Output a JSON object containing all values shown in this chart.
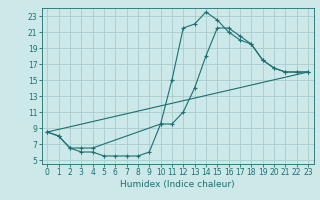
{
  "title": "",
  "xlabel": "Humidex (Indice chaleur)",
  "bg_color": "#cce8e8",
  "grid_color": "#aacccc",
  "line_color": "#1a7070",
  "xlim": [
    -0.5,
    23.5
  ],
  "ylim": [
    4.5,
    24.0
  ],
  "yticks": [
    5,
    7,
    9,
    11,
    13,
    15,
    17,
    19,
    21,
    23
  ],
  "xticks": [
    0,
    1,
    2,
    3,
    4,
    5,
    6,
    7,
    8,
    9,
    10,
    11,
    12,
    13,
    14,
    15,
    16,
    17,
    18,
    19,
    20,
    21,
    22,
    23
  ],
  "line1_x": [
    0,
    1,
    2,
    3,
    4,
    10,
    11,
    12,
    13,
    14,
    15,
    16,
    17,
    18,
    19,
    20,
    21,
    22,
    23
  ],
  "line1_y": [
    8.5,
    8.0,
    6.5,
    6.5,
    6.5,
    9.5,
    15.0,
    21.5,
    22.0,
    23.5,
    22.5,
    21.0,
    20.0,
    19.5,
    17.5,
    16.5,
    16.0,
    16.0,
    16.0
  ],
  "line2_x": [
    0,
    1,
    2,
    3,
    4,
    5,
    6,
    7,
    8,
    9,
    10,
    11,
    12,
    13,
    14,
    15,
    16,
    17,
    18,
    19,
    20,
    21,
    22,
    23
  ],
  "line2_y": [
    8.5,
    8.0,
    6.5,
    6.0,
    6.0,
    5.5,
    5.5,
    5.5,
    5.5,
    6.0,
    9.5,
    9.5,
    11.0,
    14.0,
    18.0,
    21.5,
    21.5,
    20.5,
    19.5,
    17.5,
    16.5,
    16.0,
    16.0,
    16.0
  ],
  "line3_x": [
    0,
    23
  ],
  "line3_y": [
    8.5,
    16.0
  ],
  "tick_fontsize": 5.5,
  "xlabel_fontsize": 6.5,
  "linewidth": 0.8,
  "markersize": 3.5
}
